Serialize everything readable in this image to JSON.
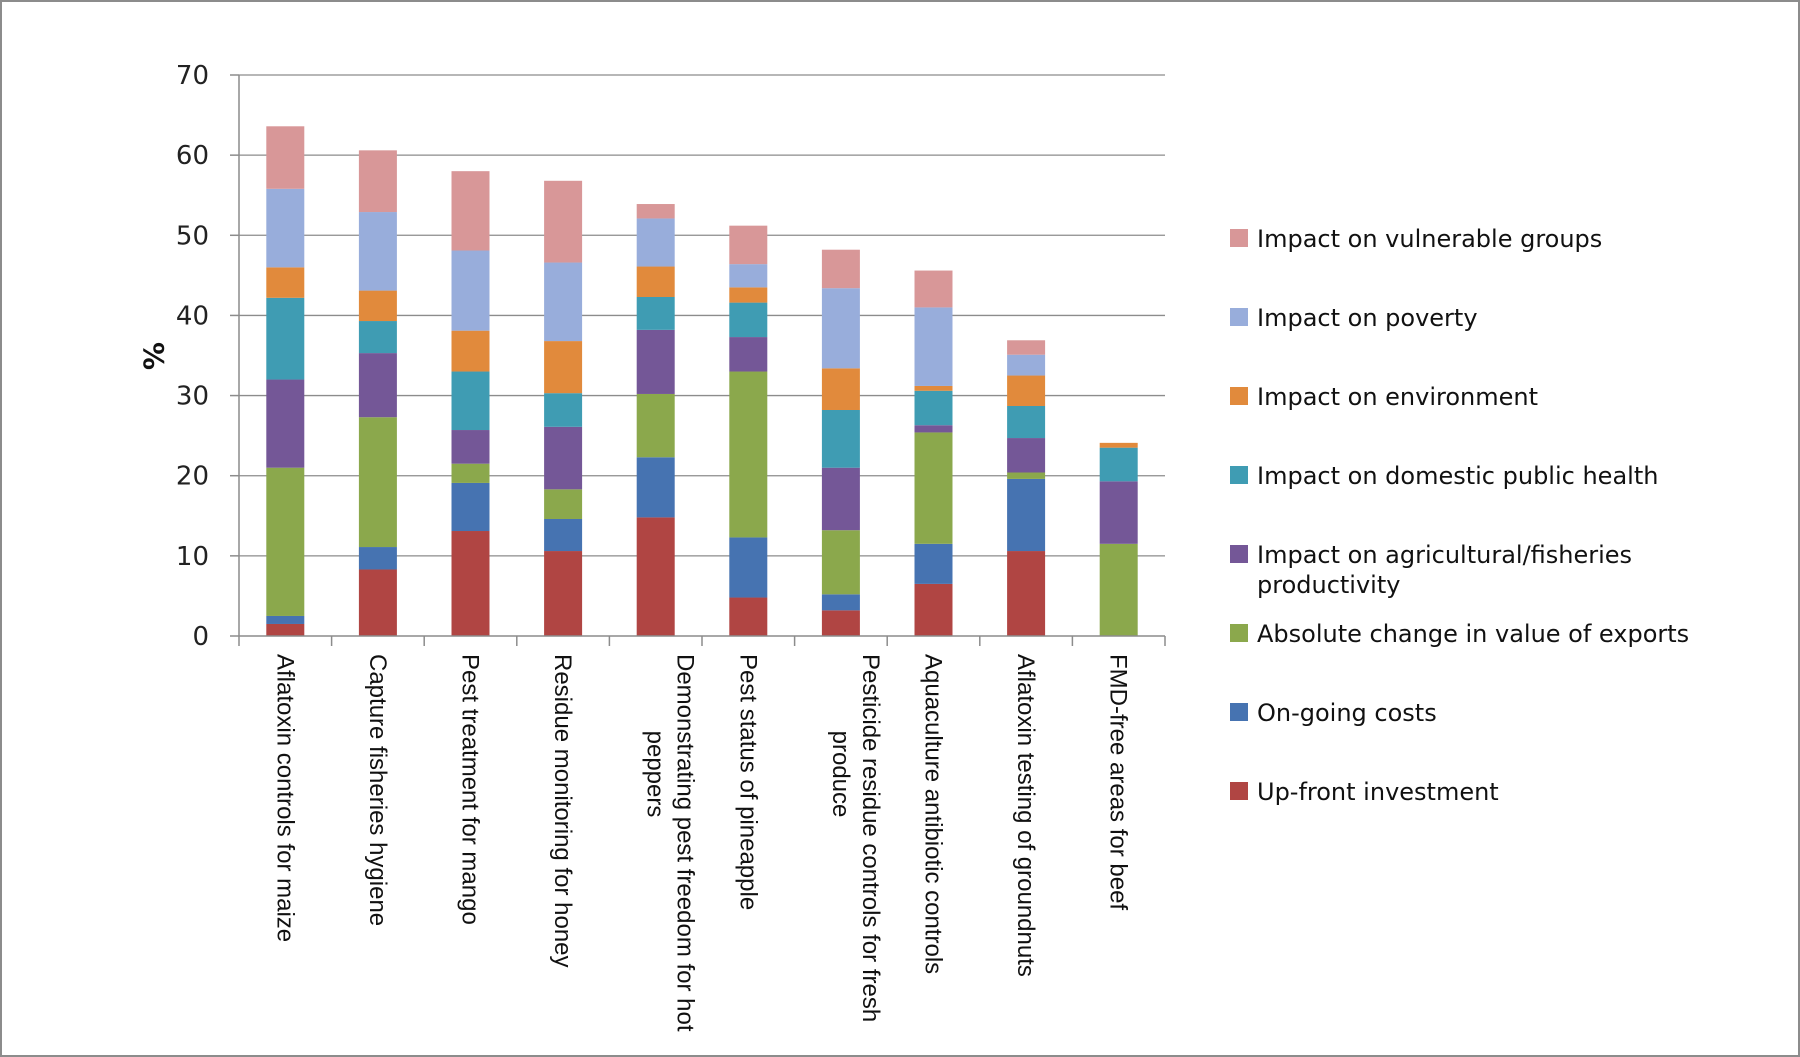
{
  "chart_data": {
    "type": "bar",
    "stacked": true,
    "title": "",
    "xlabel": "",
    "ylabel": "%",
    "ylim": [
      0,
      70
    ],
    "yticks": [
      0,
      10,
      20,
      30,
      40,
      50,
      60,
      70
    ],
    "grid": true,
    "legend_position": "right",
    "categories": [
      [
        "Aflatoxin controls for maize"
      ],
      [
        "Capture fisheries hygiene"
      ],
      [
        "Pest treatment for mango"
      ],
      [
        "Residue monitoring for honey"
      ],
      [
        "Demonstrating pest freedom for hot",
        "peppers"
      ],
      [
        "Pest status of pineapple"
      ],
      [
        "Pesticide residue controls for fresh",
        "produce"
      ],
      [
        "Aquaculture antibiotic controls"
      ],
      [
        "Aflatoxin testing of groundnuts"
      ],
      [
        "FMD-free areas for beef"
      ]
    ],
    "series": [
      {
        "name": "Up-front investment",
        "color": "#b04543",
        "values": [
          1.5,
          8.3,
          13.1,
          10.6,
          14.8,
          4.8,
          3.2,
          6.5,
          10.6,
          0
        ]
      },
      {
        "name": "On-going costs",
        "color": "#4673b1",
        "values": [
          1.0,
          2.8,
          6.0,
          4.0,
          7.5,
          7.5,
          2.0,
          5.0,
          9.0,
          0
        ]
      },
      {
        "name": "Absolute change in value of exports",
        "color": "#8ba84c",
        "values": [
          18.5,
          16.2,
          2.4,
          3.7,
          7.9,
          20.7,
          8.0,
          13.9,
          0.8,
          11.5
        ]
      },
      {
        "name": "Impact on agricultural/fisheries productivity",
        ", color": "",
        "color": "#745797",
        "values": [
          11.0,
          8.0,
          4.2,
          7.8,
          8.0,
          4.3,
          7.8,
          0.9,
          4.3,
          7.8
        ]
      },
      {
        "name": "Impact on domestic public health",
        "color": "#3f9cb3",
        "values": [
          10.2,
          4.0,
          7.3,
          4.2,
          4.1,
          4.3,
          7.2,
          4.3,
          4.0,
          4.2
        ]
      },
      {
        "name": "Impact on environment",
        "color": "#e18a3c",
        "values": [
          3.8,
          3.8,
          5.1,
          6.5,
          3.8,
          1.9,
          5.2,
          0.6,
          3.8,
          0.6
        ]
      },
      {
        "name": "Impact on poverty",
        "color": "#98addb",
        "values": [
          9.8,
          9.8,
          10.0,
          9.8,
          6.0,
          2.9,
          10.0,
          9.8,
          2.6,
          0
        ]
      },
      {
        "name": "Impact on vulnerable groups",
        "color": "#d89798",
        "values": [
          7.8,
          7.7,
          9.9,
          10.2,
          1.8,
          4.8,
          4.8,
          4.6,
          1.8,
          0
        ]
      }
    ],
    "legend_order": [
      [
        "Impact on vulnerable groups"
      ],
      [
        "Impact on poverty"
      ],
      [
        "Impact on environment"
      ],
      [
        "Impact on domestic public health"
      ],
      [
        "Impact on agricultural/fisheries",
        "productivity"
      ],
      [
        "Absolute change in value of exports"
      ],
      [
        "On-going costs"
      ],
      [
        "Up-front investment"
      ]
    ],
    "legend_colors": [
      "#d89798",
      "#98addb",
      "#e18a3c",
      "#3f9cb3",
      "#745797",
      "#8ba84c",
      "#4673b1",
      "#b04543"
    ]
  }
}
